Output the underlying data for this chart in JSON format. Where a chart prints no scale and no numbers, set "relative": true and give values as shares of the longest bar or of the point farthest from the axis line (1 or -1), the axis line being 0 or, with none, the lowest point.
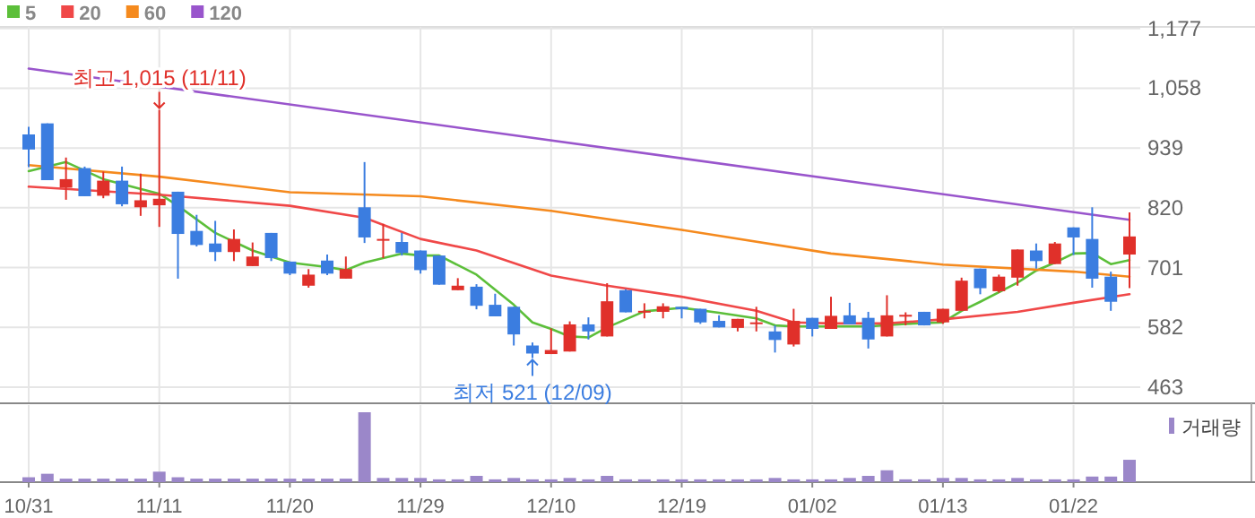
{
  "chart_data": [
    {
      "type": "candlestick",
      "categories": [
        "10/31",
        null,
        null,
        null,
        null,
        null,
        null,
        "11/11",
        null,
        null,
        null,
        null,
        null,
        null,
        "11/20",
        null,
        null,
        null,
        null,
        null,
        null,
        "11/29",
        null,
        null,
        null,
        null,
        null,
        null,
        "12/10",
        null,
        null,
        null,
        null,
        null,
        null,
        "12/19",
        null,
        null,
        null,
        null,
        null,
        null,
        "01/02",
        null,
        null,
        null,
        null,
        null,
        null,
        "01/13",
        null,
        null,
        null,
        null,
        null,
        null,
        "01/22",
        null,
        null,
        null
      ],
      "ohlc": [
        [
          966,
          981,
          901,
          936
        ],
        [
          988,
          988,
          875,
          875
        ],
        [
          860,
          920,
          836,
          877
        ],
        [
          899,
          902,
          843,
          843
        ],
        [
          844,
          892,
          839,
          874
        ],
        [
          874,
          902,
          823,
          827
        ],
        [
          821,
          888,
          804,
          835
        ],
        [
          825,
          1015,
          782,
          838
        ],
        [
          852,
          852,
          679,
          768
        ],
        [
          774,
          806,
          743,
          746
        ],
        [
          749,
          794,
          714,
          732
        ],
        [
          732,
          777,
          714,
          758
        ],
        [
          704,
          751,
          704,
          723
        ],
        [
          770,
          770,
          714,
          720
        ],
        [
          713,
          713,
          686,
          689
        ],
        [
          665,
          698,
          661,
          687
        ],
        [
          715,
          727,
          686,
          689
        ],
        [
          679,
          723,
          679,
          698
        ],
        [
          821,
          911,
          750,
          761
        ],
        [
          758,
          788,
          720,
          758
        ],
        [
          752,
          770,
          725,
          730
        ],
        [
          735,
          735,
          689,
          696
        ],
        [
          725,
          725,
          667,
          667
        ],
        [
          656,
          680,
          656,
          665
        ],
        [
          663,
          668,
          618,
          625
        ],
        [
          627,
          649,
          604,
          604
        ],
        [
          623,
          623,
          546,
          568
        ],
        [
          546,
          552,
          521,
          530
        ],
        [
          529,
          580,
          529,
          537
        ],
        [
          534,
          594,
          534,
          588
        ],
        [
          588,
          602,
          558,
          574
        ],
        [
          564,
          670,
          564,
          634
        ],
        [
          656,
          658,
          612,
          612
        ],
        [
          615,
          630,
          600,
          615
        ],
        [
          613,
          630,
          600,
          624
        ],
        [
          623,
          623,
          600,
          618
        ],
        [
          619,
          619,
          589,
          592
        ],
        [
          595,
          606,
          582,
          582
        ],
        [
          581,
          599,
          574,
          599
        ],
        [
          592,
          623,
          574,
          592
        ],
        [
          574,
          586,
          532,
          557
        ],
        [
          548,
          619,
          544,
          595
        ],
        [
          601,
          601,
          564,
          579
        ],
        [
          579,
          643,
          579,
          605
        ],
        [
          606,
          631,
          588,
          588
        ],
        [
          601,
          613,
          540,
          558
        ],
        [
          564,
          646,
          564,
          606
        ],
        [
          607,
          612,
          586,
          607
        ],
        [
          613,
          613,
          586,
          586
        ],
        [
          592,
          619,
          589,
          619
        ],
        [
          615,
          681,
          615,
          675
        ],
        [
          699,
          699,
          648,
          660
        ],
        [
          654,
          687,
          651,
          683
        ],
        [
          681,
          737,
          665,
          737
        ],
        [
          735,
          749,
          699,
          714
        ],
        [
          708,
          752,
          708,
          749
        ],
        [
          781,
          781,
          726,
          761
        ],
        [
          758,
          821,
          661,
          679
        ],
        [
          683,
          693,
          615,
          633
        ],
        [
          727,
          811,
          660,
          763
        ]
      ],
      "series": [
        {
          "name": "5",
          "type": "line",
          "color": "#5cbf3a",
          "values": [
            893,
            null,
            911,
            null,
            877,
            null,
            null,
            848,
            824,
            null,
            770,
            null,
            735,
            null,
            711,
            null,
            702,
            696,
            711,
            null,
            729,
            725,
            725,
            null,
            687,
            null,
            627,
            592,
            579,
            564,
            562,
            582,
            null,
            614,
            null,
            621,
            null,
            611,
            null,
            600,
            586,
            584,
            null,
            584,
            null,
            584,
            null,
            589,
            null,
            592,
            615,
            633,
            null,
            671,
            695,
            711,
            729,
            730,
            708,
            716
          ]
        },
        {
          "name": "20",
          "type": "line",
          "color": "#f04848",
          "values": [
            862,
            null,
            null,
            null,
            null,
            null,
            null,
            846,
            null,
            null,
            null,
            null,
            null,
            null,
            824,
            null,
            null,
            null,
            800,
            null,
            null,
            758,
            null,
            null,
            735,
            null,
            null,
            null,
            685,
            null,
            null,
            665,
            null,
            null,
            null,
            643,
            null,
            null,
            null,
            615,
            null,
            592,
            null,
            590,
            null,
            null,
            590,
            null,
            null,
            598,
            null,
            null,
            null,
            613,
            null,
            null,
            631,
            null,
            null,
            648
          ]
        },
        {
          "name": "60",
          "type": "line",
          "color": "#f58a1e",
          "values": [
            905,
            null,
            null,
            null,
            null,
            null,
            null,
            882,
            null,
            null,
            null,
            null,
            null,
            null,
            851,
            null,
            null,
            null,
            null,
            null,
            null,
            843,
            null,
            null,
            null,
            null,
            null,
            null,
            814,
            null,
            null,
            null,
            null,
            null,
            null,
            776,
            null,
            null,
            null,
            null,
            null,
            null,
            null,
            729,
            null,
            null,
            null,
            null,
            null,
            707,
            null,
            null,
            null,
            null,
            null,
            null,
            693,
            null,
            null,
            683
          ]
        },
        {
          "name": "120",
          "type": "line",
          "color": "#9955cc",
          "values": [
            1097,
            null,
            null,
            null,
            null,
            null,
            null,
            null,
            null,
            null,
            null,
            null,
            null,
            null,
            null,
            null,
            null,
            null,
            null,
            null,
            null,
            null,
            null,
            null,
            null,
            null,
            null,
            null,
            null,
            null,
            null,
            null,
            null,
            null,
            null,
            null,
            null,
            null,
            null,
            null,
            null,
            null,
            null,
            null,
            null,
            null,
            null,
            null,
            null,
            null,
            null,
            null,
            null,
            null,
            null,
            null,
            null,
            null,
            null,
            796
          ]
        }
      ],
      "ylim": [
        431,
        1180
      ],
      "yticks": [
        463,
        582,
        701,
        820,
        939,
        {
          "value": 1058,
          "label": "1,058"
        },
        {
          "value": 1177,
          "label": "1,177"
        }
      ],
      "annotations": [
        {
          "text": "최고 1,015 (11/11)",
          "x": "11/11",
          "y": 1015
        },
        {
          "text": "최저 521 (12/09)",
          "y": 521
        }
      ],
      "grid": true,
      "legend": "top left"
    },
    {
      "type": "bar",
      "relative": true,
      "categories": [
        null,
        null,
        null,
        null,
        null,
        null,
        null,
        null,
        null,
        null,
        null,
        null,
        null,
        null,
        null,
        null,
        null,
        null,
        null,
        null,
        null,
        null,
        null,
        null,
        null,
        null,
        null,
        null,
        null,
        null,
        null,
        null,
        null,
        null,
        null,
        null,
        null,
        null,
        null,
        null,
        null,
        null,
        null,
        null,
        null,
        null,
        null,
        null,
        null,
        null,
        null,
        null,
        null,
        null,
        null,
        null,
        null,
        null,
        null,
        null
      ],
      "series": [
        {
          "name": "거래량",
          "color": "#9b87c9",
          "values": [
            0.07,
            0.12,
            0.05,
            0.05,
            0.05,
            0.05,
            0.05,
            0.15,
            0.07,
            0.05,
            0.05,
            0.05,
            0.05,
            0.05,
            0.05,
            0.05,
            0.05,
            0.05,
            1,
            0.06,
            0.06,
            0.06,
            0.04,
            0.04,
            0.09,
            0.04,
            0.06,
            0.04,
            0.04,
            0.06,
            0.04,
            0.09,
            0.04,
            0.04,
            0.04,
            0.04,
            0.04,
            0.04,
            0.04,
            0.04,
            0.06,
            0.04,
            0.04,
            0.04,
            0.06,
            0.09,
            0.17,
            0.04,
            0.04,
            0.06,
            0.06,
            0.04,
            0.04,
            0.06,
            0.04,
            0.04,
            0.04,
            0.08,
            0.08,
            0.32
          ]
        }
      ],
      "grid": "x",
      "legend": "top right"
    }
  ]
}
